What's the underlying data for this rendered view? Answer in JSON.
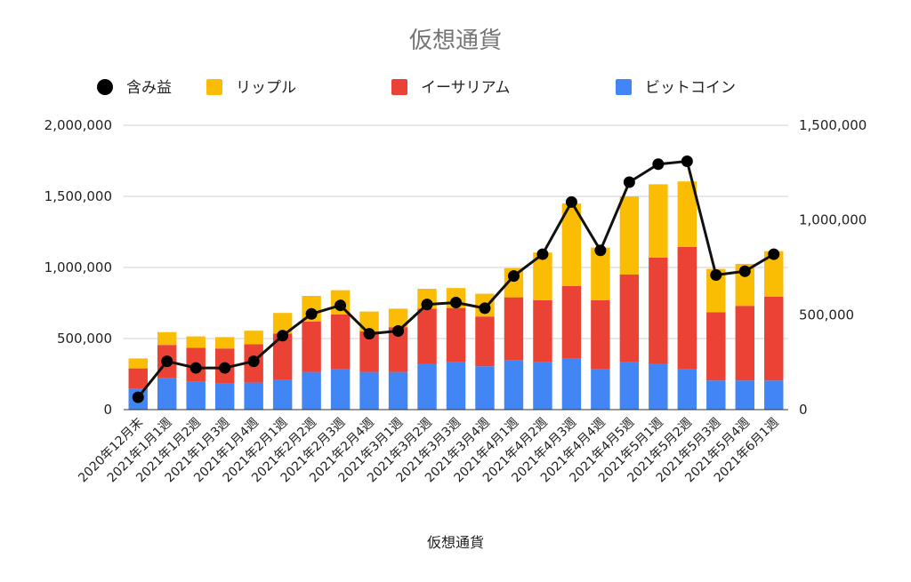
{
  "chart_data": {
    "type": "bar",
    "stacked": true,
    "title": "仮想通貨",
    "xlabel": "仮想通貨",
    "ylabel": "",
    "ylim": [
      0,
      2000000
    ],
    "y2lim": [
      0,
      1500000
    ],
    "y_ticks": [
      "0",
      "500,000",
      "1,000,000",
      "1,500,000",
      "2,000,000"
    ],
    "y2_ticks": [
      "0",
      "500,000",
      "1,000,000",
      "1,500,000"
    ],
    "grid": true,
    "legend_position": "top",
    "categories": [
      "2020年12月末",
      "2021年1月1週",
      "2021年1月2週",
      "2021年1月3週",
      "2021年1月4週",
      "2021年2月1週",
      "2021年2月2週",
      "2021年2月3週",
      "2021年2月4週",
      "2021年3月1週",
      "2021年3月2週",
      "2021年3月3週",
      "2021年3月4週",
      "2021年4月1週",
      "2021年4月2週",
      "2021年4月3週",
      "2021年4月4週",
      "2021年4月5週",
      "2021年5月1週",
      "2021年5月2週",
      "2021年5月3週",
      "2021年5月4週",
      "2021年6月1週"
    ],
    "series": [
      {
        "name": "ビットコイン",
        "color": "#4285f4",
        "axis": "left",
        "values": [
          145000,
          220000,
          195000,
          185000,
          190000,
          210000,
          265000,
          285000,
          265000,
          265000,
          325000,
          335000,
          305000,
          345000,
          335000,
          360000,
          285000,
          335000,
          325000,
          285000,
          205000,
          205000,
          205000
        ]
      },
      {
        "name": "イーサリアム",
        "color": "#ea4335",
        "axis": "left",
        "values": [
          145000,
          235000,
          240000,
          245000,
          270000,
          325000,
          355000,
          385000,
          285000,
          315000,
          385000,
          380000,
          350000,
          445000,
          435000,
          510000,
          485000,
          615000,
          745000,
          860000,
          480000,
          525000,
          590000
        ]
      },
      {
        "name": "リップル",
        "color": "#fbbc04",
        "axis": "left",
        "values": [
          70000,
          90000,
          80000,
          80000,
          95000,
          145000,
          180000,
          170000,
          140000,
          130000,
          140000,
          140000,
          160000,
          205000,
          335000,
          580000,
          370000,
          550000,
          515000,
          460000,
          305000,
          295000,
          320000
        ]
      },
      {
        "name": "含み益",
        "color": "#000000",
        "axis": "right",
        "chart": "line",
        "values": [
          65000,
          255000,
          220000,
          220000,
          255000,
          390000,
          505000,
          550000,
          400000,
          415000,
          555000,
          565000,
          535000,
          705000,
          820000,
          1095000,
          840000,
          1200000,
          1295000,
          1310000,
          710000,
          730000,
          820000
        ]
      }
    ]
  },
  "legend": [
    {
      "label": "含み益",
      "color": "#000000",
      "marker": "circle"
    },
    {
      "label": "リップル",
      "color": "#fbbc04",
      "marker": "square"
    },
    {
      "label": "イーサリアム",
      "color": "#ea4335",
      "marker": "square"
    },
    {
      "label": "ビットコイン",
      "color": "#4285f4",
      "marker": "square"
    }
  ]
}
